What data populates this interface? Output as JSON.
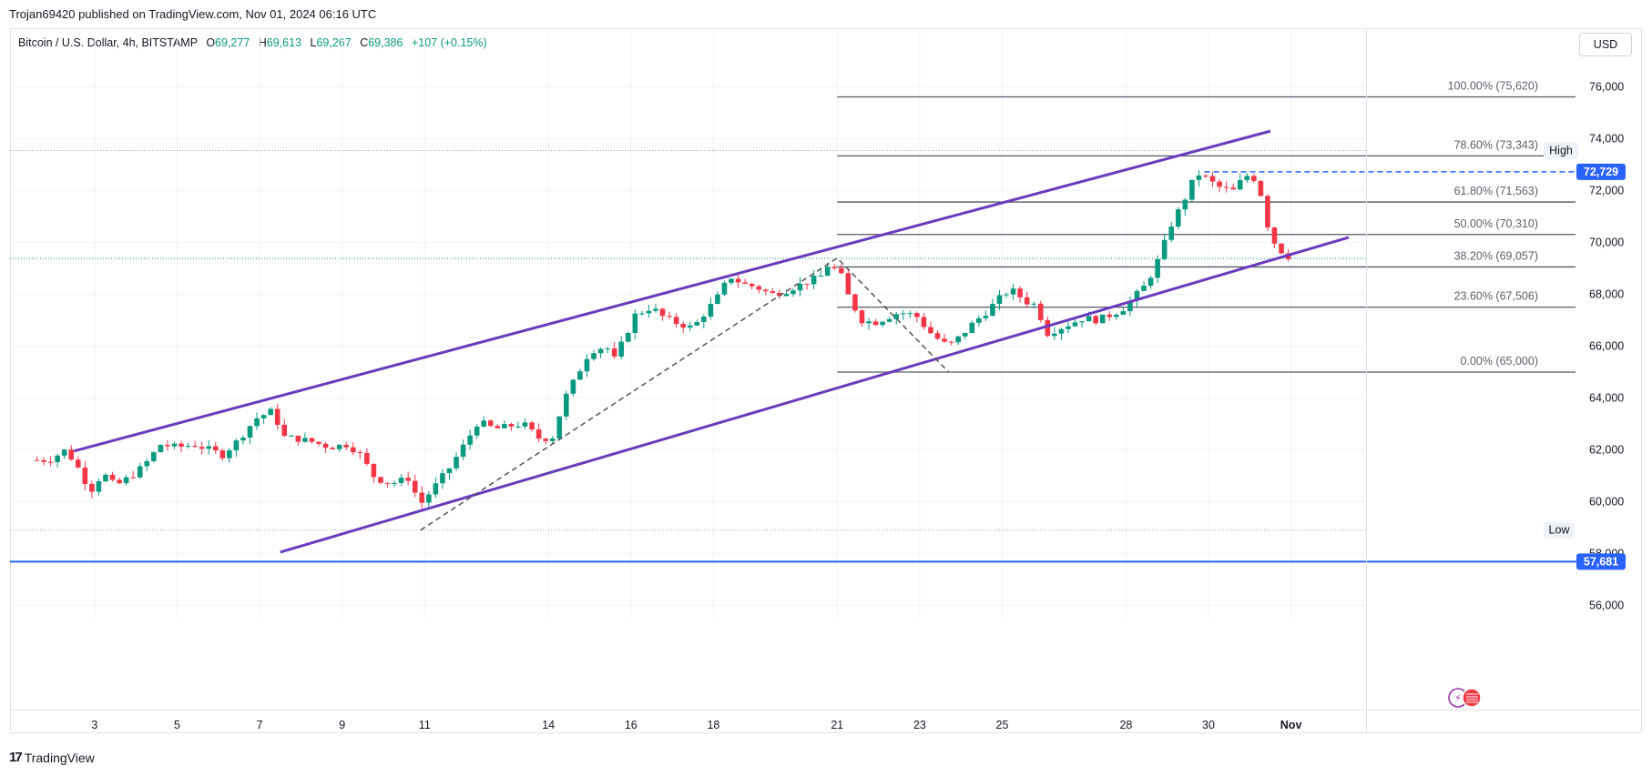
{
  "publisher_line": "Trojan69420 published on TradingView.com, Nov 01, 2024 06:16 UTC",
  "legend": {
    "symbol": "Bitcoin / U.S. Dollar, 4h, BITSTAMP",
    "open_label": "O",
    "open": "69,277",
    "high_label": "H",
    "high": "69,613",
    "low_label": "L",
    "low": "69,267",
    "close_label": "C",
    "close": "69,386",
    "change": "+107 (+0.15%)"
  },
  "currency_button": "USD",
  "footer_brand": "TradingView",
  "colors": {
    "up": "#089981",
    "down": "#f23645",
    "channel": "#6a3bbd",
    "fib": "#555a66",
    "support": "#2962ff",
    "grid": "#f0f3fa"
  },
  "chart_data": {
    "type": "candlestick",
    "ylim": [
      55500,
      77000
    ],
    "y_ticks": [
      56000,
      58000,
      60000,
      62000,
      64000,
      66000,
      68000,
      70000,
      72000,
      74000,
      76000
    ],
    "y_tick_labels": [
      "56,000",
      "58,000",
      "60,000",
      "62,000",
      "64,000",
      "66,000",
      "68,000",
      "70,000",
      "72,000",
      "74,000",
      "76,000"
    ],
    "x_ticks": [
      {
        "label": "3",
        "day": 3
      },
      {
        "label": "5",
        "day": 5
      },
      {
        "label": "7",
        "day": 7
      },
      {
        "label": "9",
        "day": 9
      },
      {
        "label": "11",
        "day": 11
      },
      {
        "label": "14",
        "day": 14
      },
      {
        "label": "16",
        "day": 16
      },
      {
        "label": "18",
        "day": 18
      },
      {
        "label": "21",
        "day": 21
      },
      {
        "label": "23",
        "day": 23
      },
      {
        "label": "25",
        "day": 25
      },
      {
        "label": "28",
        "day": 28
      },
      {
        "label": "30",
        "day": 30
      },
      {
        "label": "Nov",
        "day": 32
      }
    ],
    "close_path": [
      [
        1.9,
        61600
      ],
      [
        2.3,
        62000
      ],
      [
        2.6,
        61300
      ],
      [
        2.9,
        60400
      ],
      [
        3.2,
        61100
      ],
      [
        3.5,
        60600
      ],
      [
        3.9,
        61000
      ],
      [
        4.2,
        61400
      ],
      [
        4.6,
        62200
      ],
      [
        5.0,
        62100
      ],
      [
        5.4,
        62200
      ],
      [
        5.8,
        62000
      ],
      [
        6.1,
        61800
      ],
      [
        6.5,
        62400
      ],
      [
        6.9,
        63200
      ],
      [
        7.3,
        63500
      ],
      [
        7.6,
        62500
      ],
      [
        8.0,
        62400
      ],
      [
        8.3,
        62300
      ],
      [
        8.7,
        62100
      ],
      [
        9.1,
        62200
      ],
      [
        9.4,
        61900
      ],
      [
        9.8,
        60900
      ],
      [
        10.2,
        60700
      ],
      [
        10.6,
        60900
      ],
      [
        10.9,
        59900
      ],
      [
        11.3,
        60700
      ],
      [
        11.6,
        61300
      ],
      [
        12.0,
        62300
      ],
      [
        12.3,
        63100
      ],
      [
        12.7,
        62800
      ],
      [
        13.0,
        62900
      ],
      [
        13.4,
        63000
      ],
      [
        13.8,
        62400
      ],
      [
        14.1,
        62500
      ],
      [
        14.4,
        64000
      ],
      [
        14.7,
        64900
      ],
      [
        15.0,
        65800
      ],
      [
        15.4,
        66000
      ],
      [
        15.6,
        65500
      ],
      [
        15.9,
        66500
      ],
      [
        16.1,
        67200
      ],
      [
        16.5,
        67500
      ],
      [
        16.8,
        67100
      ],
      [
        17.1,
        66900
      ],
      [
        17.5,
        66700
      ],
      [
        17.8,
        67300
      ],
      [
        18.1,
        67900
      ],
      [
        18.4,
        68700
      ],
      [
        18.7,
        68400
      ],
      [
        19.0,
        68300
      ],
      [
        19.4,
        68000
      ],
      [
        19.7,
        68100
      ],
      [
        20.0,
        68300
      ],
      [
        20.3,
        68500
      ],
      [
        20.6,
        68700
      ],
      [
        20.8,
        69200
      ],
      [
        21.1,
        68700
      ],
      [
        21.3,
        67800
      ],
      [
        21.6,
        67000
      ],
      [
        21.9,
        66900
      ],
      [
        22.2,
        67100
      ],
      [
        22.5,
        67300
      ],
      [
        22.9,
        67200
      ],
      [
        23.2,
        66600
      ],
      [
        23.5,
        66200
      ],
      [
        23.7,
        66000
      ],
      [
        24.0,
        66400
      ],
      [
        24.3,
        66900
      ],
      [
        24.6,
        67300
      ],
      [
        24.9,
        67800
      ],
      [
        25.2,
        68200
      ],
      [
        25.6,
        67700
      ],
      [
        25.8,
        67600
      ],
      [
        26.1,
        66500
      ],
      [
        26.4,
        66700
      ],
      [
        26.7,
        66900
      ],
      [
        27.0,
        67100
      ],
      [
        27.3,
        67000
      ],
      [
        27.6,
        67200
      ],
      [
        27.9,
        67400
      ],
      [
        28.2,
        67900
      ],
      [
        28.5,
        68400
      ],
      [
        28.8,
        69400
      ],
      [
        29.1,
        70700
      ],
      [
        29.4,
        71600
      ],
      [
        29.6,
        72300
      ],
      [
        29.8,
        72700
      ],
      [
        30.0,
        72400
      ],
      [
        30.3,
        72100
      ],
      [
        30.6,
        72000
      ],
      [
        30.9,
        72600
      ],
      [
        31.2,
        72400
      ],
      [
        31.4,
        70800
      ],
      [
        31.6,
        70000
      ],
      [
        31.8,
        69600
      ],
      [
        32.0,
        69386
      ]
    ],
    "series": [
      {
        "name": "channel-upper",
        "points": [
          [
            2.5,
            61950
          ],
          [
            31.5,
            74300
          ]
        ]
      },
      {
        "name": "channel-lower",
        "points": [
          [
            7.5,
            58050
          ],
          [
            33.4,
            70200
          ]
        ]
      },
      {
        "name": "zigzag",
        "points": [
          [
            10.9,
            58900
          ],
          [
            21.0,
            69400
          ],
          [
            23.7,
            65000
          ]
        ]
      }
    ],
    "fib_levels": [
      {
        "label": "100.00% (75,620)",
        "value": 75620
      },
      {
        "label": "78.60% (73,343)",
        "value": 73343
      },
      {
        "label": "61.80% (71,563)",
        "value": 71563
      },
      {
        "label": "50.00% (70,310)",
        "value": 70310
      },
      {
        "label": "38.20% (69,057)",
        "value": 69057
      },
      {
        "label": "23.60% (67,506)",
        "value": 67506
      },
      {
        "label": "0.00% (65,000)",
        "value": 65000
      }
    ],
    "high_marker": {
      "label": "High",
      "value": 73550
    },
    "low_marker": {
      "label": "Low",
      "value": 58900
    },
    "last_price_line": 69386,
    "resistance_line": {
      "label": "72,729",
      "value": 72729
    },
    "support_line": {
      "label": "57,681",
      "value": 57681
    }
  }
}
